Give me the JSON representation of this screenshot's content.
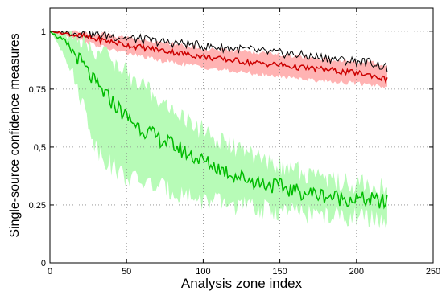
{
  "chart_data": {
    "type": "line",
    "title": "",
    "xlabel": "Analysis zone index",
    "ylabel": "Single-source confidence measures",
    "xlim": [
      0,
      250
    ],
    "ylim": [
      0,
      1.1
    ],
    "xticks": [
      0,
      50,
      100,
      150,
      200,
      250
    ],
    "xtick_labels": [
      "0",
      "50",
      "100",
      "150",
      "200",
      "250"
    ],
    "yticks": [
      0,
      0.25,
      0.5,
      0.75,
      1
    ],
    "ytick_labels": [
      "0",
      "0,25",
      "0,5",
      "0,75",
      "1"
    ],
    "grid": true,
    "legend": "none",
    "series": [
      {
        "color": "#000000",
        "style": "line",
        "x": [
          0,
          10,
          20,
          30,
          40,
          50,
          60,
          70,
          80,
          90,
          100,
          110,
          120,
          130,
          140,
          150,
          160,
          170,
          180,
          190,
          200,
          210,
          220
        ],
        "values": [
          1.0,
          0.995,
          0.99,
          0.985,
          0.98,
          0.97,
          0.965,
          0.955,
          0.95,
          0.945,
          0.935,
          0.93,
          0.925,
          0.92,
          0.91,
          0.905,
          0.9,
          0.89,
          0.885,
          0.875,
          0.87,
          0.865,
          0.84
        ]
      },
      {
        "color": "#cc0000",
        "style": "line",
        "band_color": "#ffb3b3",
        "x": [
          0,
          10,
          20,
          30,
          40,
          50,
          60,
          70,
          80,
          90,
          100,
          110,
          120,
          130,
          140,
          150,
          160,
          170,
          180,
          190,
          200,
          210,
          220
        ],
        "values": [
          1.0,
          0.99,
          0.98,
          0.965,
          0.955,
          0.94,
          0.93,
          0.92,
          0.91,
          0.9,
          0.89,
          0.88,
          0.875,
          0.865,
          0.86,
          0.855,
          0.845,
          0.84,
          0.835,
          0.825,
          0.82,
          0.81,
          0.79
        ],
        "band_lower": [
          1.0,
          0.98,
          0.96,
          0.94,
          0.92,
          0.905,
          0.89,
          0.875,
          0.865,
          0.855,
          0.845,
          0.835,
          0.825,
          0.82,
          0.81,
          0.805,
          0.8,
          0.79,
          0.785,
          0.78,
          0.775,
          0.77,
          0.76
        ],
        "band_upper": [
          1.0,
          1.0,
          0.995,
          0.99,
          0.985,
          0.975,
          0.965,
          0.955,
          0.945,
          0.935,
          0.925,
          0.92,
          0.915,
          0.91,
          0.905,
          0.9,
          0.89,
          0.885,
          0.88,
          0.875,
          0.87,
          0.865,
          0.845
        ]
      },
      {
        "color": "#00bb00",
        "style": "line",
        "band_color": "#b7fbb7",
        "x": [
          0,
          10,
          20,
          30,
          40,
          50,
          60,
          70,
          80,
          90,
          100,
          110,
          120,
          130,
          140,
          150,
          160,
          170,
          180,
          190,
          200,
          210,
          220
        ],
        "values": [
          1.0,
          0.95,
          0.87,
          0.77,
          0.7,
          0.63,
          0.58,
          0.54,
          0.51,
          0.47,
          0.44,
          0.41,
          0.38,
          0.36,
          0.34,
          0.33,
          0.31,
          0.3,
          0.29,
          0.28,
          0.275,
          0.27,
          0.26
        ],
        "band_lower": [
          1.0,
          0.9,
          0.72,
          0.5,
          0.42,
          0.37,
          0.35,
          0.33,
          0.31,
          0.29,
          0.27,
          0.26,
          0.25,
          0.24,
          0.23,
          0.22,
          0.22,
          0.21,
          0.2,
          0.2,
          0.2,
          0.19,
          0.18
        ],
        "band_upper": [
          1.0,
          0.99,
          0.96,
          0.92,
          0.88,
          0.82,
          0.76,
          0.71,
          0.66,
          0.61,
          0.57,
          0.53,
          0.5,
          0.47,
          0.44,
          0.42,
          0.4,
          0.38,
          0.37,
          0.35,
          0.34,
          0.33,
          0.32
        ]
      }
    ]
  }
}
